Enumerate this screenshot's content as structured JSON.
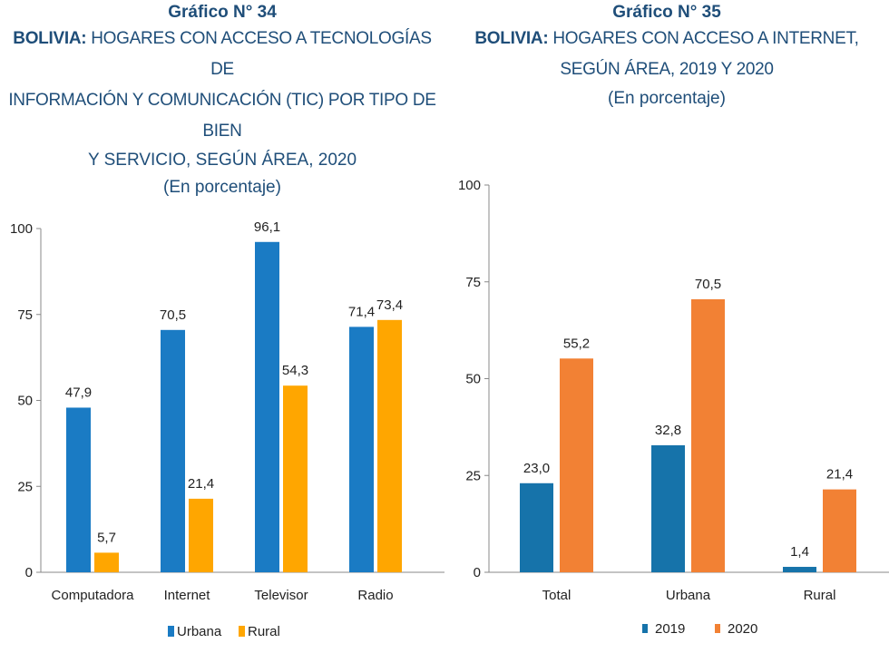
{
  "chart_data": [
    {
      "type": "bar",
      "number": "Gráfico N° 34",
      "title_bold": "BOLIVIA:",
      "title_line1": "HOGARES CON ACCESO A TECNOLOGÍAS DE",
      "title_line2": "INFORMACIÓN Y COMUNICACIÓN (TIC) POR TIPO DE BIEN",
      "title_line3": "Y SERVICIO, SEGÚN ÁREA, 2020",
      "subtitle": "(En porcentaje)",
      "categories": [
        "Computadora",
        "Internet",
        "Televisor",
        "Radio"
      ],
      "series": [
        {
          "name": "Urbana",
          "color": "#1a7bc4",
          "values": [
            47.9,
            70.5,
            96.1,
            71.4
          ],
          "labels": [
            "47,9",
            "70,5",
            "96,1",
            "71,4"
          ]
        },
        {
          "name": "Rural",
          "color": "#ffa600",
          "values": [
            5.7,
            21.4,
            54.3,
            73.4
          ],
          "labels": [
            "5,7",
            "21,4",
            "54,3",
            "73,4"
          ]
        }
      ],
      "yticks": [
        "0",
        "25",
        "50",
        "75",
        "100"
      ],
      "ylim": [
        0,
        100
      ],
      "legend_position": "bottom",
      "grid": false
    },
    {
      "type": "bar",
      "number": "Gráfico N° 35",
      "title_bold": "BOLIVIA:",
      "title_line1": "HOGARES CON ACCESO A INTERNET,",
      "title_line2": "SEGÚN ÁREA, 2019 Y 2020",
      "subtitle": "(En porcentaje)",
      "categories": [
        "Total",
        "Urbana",
        "Rural"
      ],
      "series": [
        {
          "name": "2019",
          "color": "#1673aa",
          "values": [
            23.0,
            32.8,
            1.4
          ],
          "labels": [
            "23,0",
            "32,8",
            "1,4"
          ]
        },
        {
          "name": "2020",
          "color": "#f28134",
          "values": [
            55.2,
            70.5,
            21.4
          ],
          "labels": [
            "55,2",
            "70,5",
            "21,4"
          ]
        }
      ],
      "yticks": [
        "0",
        "25",
        "50",
        "75",
        "100"
      ],
      "ylim": [
        0,
        100
      ],
      "legend_position": "bottom",
      "grid": false
    }
  ]
}
